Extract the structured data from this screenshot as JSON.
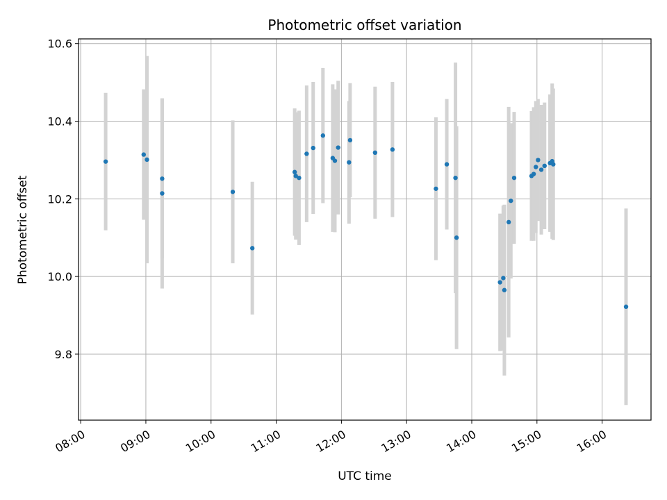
{
  "chart_data": {
    "type": "scatter",
    "title": "Photometric offset variation",
    "xlabel": "UTC time",
    "ylabel": "Photometric offset",
    "xlim": [
      "07:58",
      "16:45"
    ],
    "ylim": [
      9.63,
      10.612
    ],
    "x_ticks": [
      "08:00",
      "09:00",
      "10:00",
      "11:00",
      "12:00",
      "13:00",
      "14:00",
      "15:00",
      "16:00"
    ],
    "y_ticks": [
      9.8,
      10.0,
      10.2,
      10.4,
      10.6
    ],
    "y_tick_labels": [
      "9.8",
      "10.0",
      "10.2",
      "10.4",
      "10.6"
    ],
    "grid": true,
    "colors": {
      "point": "#1f77b4",
      "errorbar": "#d3d3d3",
      "grid": "#b0b0b0"
    },
    "points": [
      {
        "t": "08:23",
        "y": 10.296,
        "err": 0.177
      },
      {
        "t": "08:58",
        "y": 10.314,
        "err": 0.168
      },
      {
        "t": "09:01",
        "y": 10.301,
        "err": 0.267
      },
      {
        "t": "09:15",
        "y": 10.252,
        "err": 0.205
      },
      {
        "t": "09:15",
        "y": 10.214,
        "err": 0.245
      },
      {
        "t": "10:20",
        "y": 10.218,
        "err": 0.184
      },
      {
        "t": "10:38",
        "y": 10.073,
        "err": 0.171
      },
      {
        "t": "11:17",
        "y": 10.269,
        "err": 0.164
      },
      {
        "t": "11:18",
        "y": 10.259,
        "err": 0.164
      },
      {
        "t": "11:21",
        "y": 10.254,
        "err": 0.173
      },
      {
        "t": "11:28",
        "y": 10.316,
        "err": 0.176
      },
      {
        "t": "11:34",
        "y": 10.331,
        "err": 0.17
      },
      {
        "t": "11:43",
        "y": 10.363,
        "err": 0.174
      },
      {
        "t": "11:52",
        "y": 10.305,
        "err": 0.19
      },
      {
        "t": "11:54",
        "y": 10.298,
        "err": 0.184
      },
      {
        "t": "11:57",
        "y": 10.332,
        "err": 0.172
      },
      {
        "t": "12:07",
        "y": 10.294,
        "err": 0.158
      },
      {
        "t": "12:08",
        "y": 10.351,
        "err": 0.147
      },
      {
        "t": "12:31",
        "y": 10.319,
        "err": 0.17
      },
      {
        "t": "12:47",
        "y": 10.327,
        "err": 0.174
      },
      {
        "t": "13:27",
        "y": 10.226,
        "err": 0.184
      },
      {
        "t": "13:37",
        "y": 10.289,
        "err": 0.168
      },
      {
        "t": "13:45",
        "y": 10.254,
        "err": 0.297
      },
      {
        "t": "13:46",
        "y": 10.1,
        "err": 0.287
      },
      {
        "t": "14:26",
        "y": 9.985,
        "err": 0.177
      },
      {
        "t": "14:29",
        "y": 9.996,
        "err": 0.187
      },
      {
        "t": "14:30",
        "y": 9.965,
        "err": 0.22
      },
      {
        "t": "14:34",
        "y": 10.14,
        "err": 0.297
      },
      {
        "t": "14:36",
        "y": 10.195,
        "err": 0.2
      },
      {
        "t": "14:39",
        "y": 10.254,
        "err": 0.17
      },
      {
        "t": "14:55",
        "y": 10.259,
        "err": 0.167
      },
      {
        "t": "14:57",
        "y": 10.264,
        "err": 0.172
      },
      {
        "t": "14:59",
        "y": 10.282,
        "err": 0.17
      },
      {
        "t": "15:01",
        "y": 10.3,
        "err": 0.157
      },
      {
        "t": "15:04",
        "y": 10.275,
        "err": 0.167
      },
      {
        "t": "15:07",
        "y": 10.285,
        "err": 0.163
      },
      {
        "t": "15:12",
        "y": 10.292,
        "err": 0.177
      },
      {
        "t": "15:14",
        "y": 10.297,
        "err": 0.2
      },
      {
        "t": "15:15",
        "y": 10.289,
        "err": 0.195
      },
      {
        "t": "16:22",
        "y": 9.922,
        "err": 0.253
      }
    ]
  }
}
